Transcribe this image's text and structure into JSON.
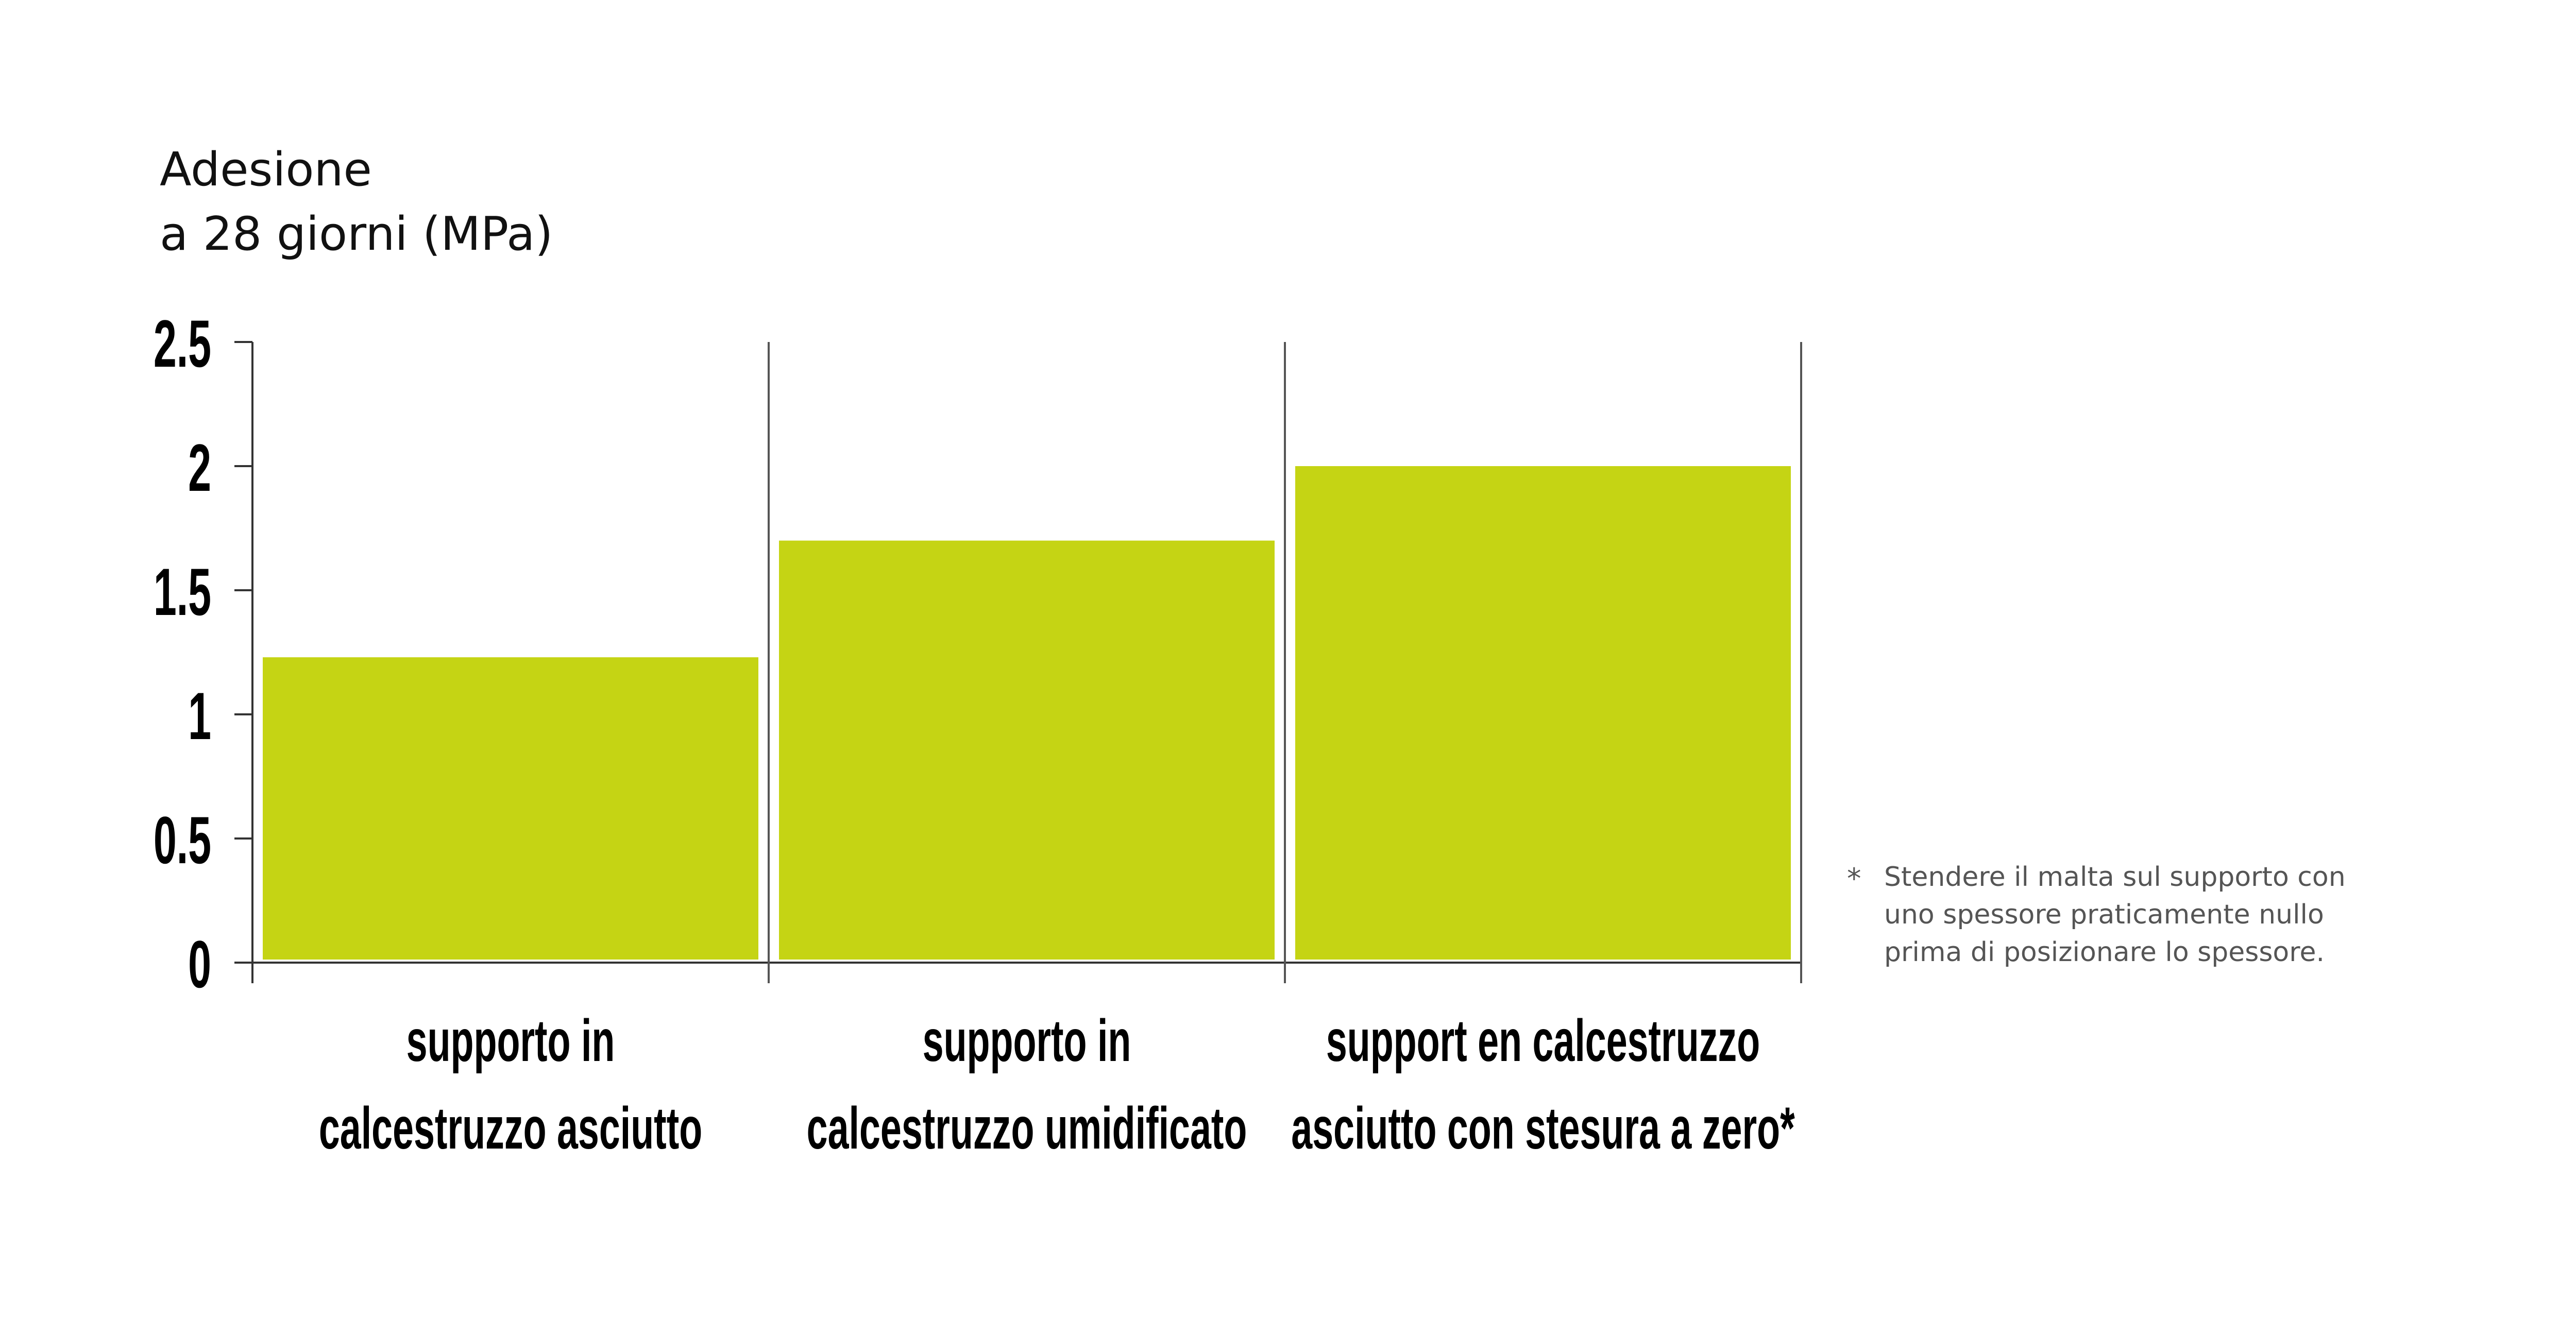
{
  "chart_data": {
    "type": "bar",
    "title": [
      "Adesione",
      "a 28 giorni (MPa)"
    ],
    "categories": [
      [
        "supporto in",
        "calcestruzzo asciutto"
      ],
      [
        "supporto in",
        "calcestruzzo umidificato"
      ],
      [
        "support en calcestruzzo",
        "asciutto con stesura a zero*"
      ]
    ],
    "values": [
      1.23,
      1.7,
      2.0
    ],
    "color": "#c5d414",
    "ylim": [
      0,
      2.5
    ],
    "yticks": [
      0,
      0.5,
      1,
      1.5,
      2,
      2.5
    ],
    "footnote": {
      "marker": "*",
      "lines": [
        "Stendere il malta sul supporto con",
        "uno spessore praticamente nullo",
        "prima di posizionare lo spessore."
      ]
    }
  }
}
